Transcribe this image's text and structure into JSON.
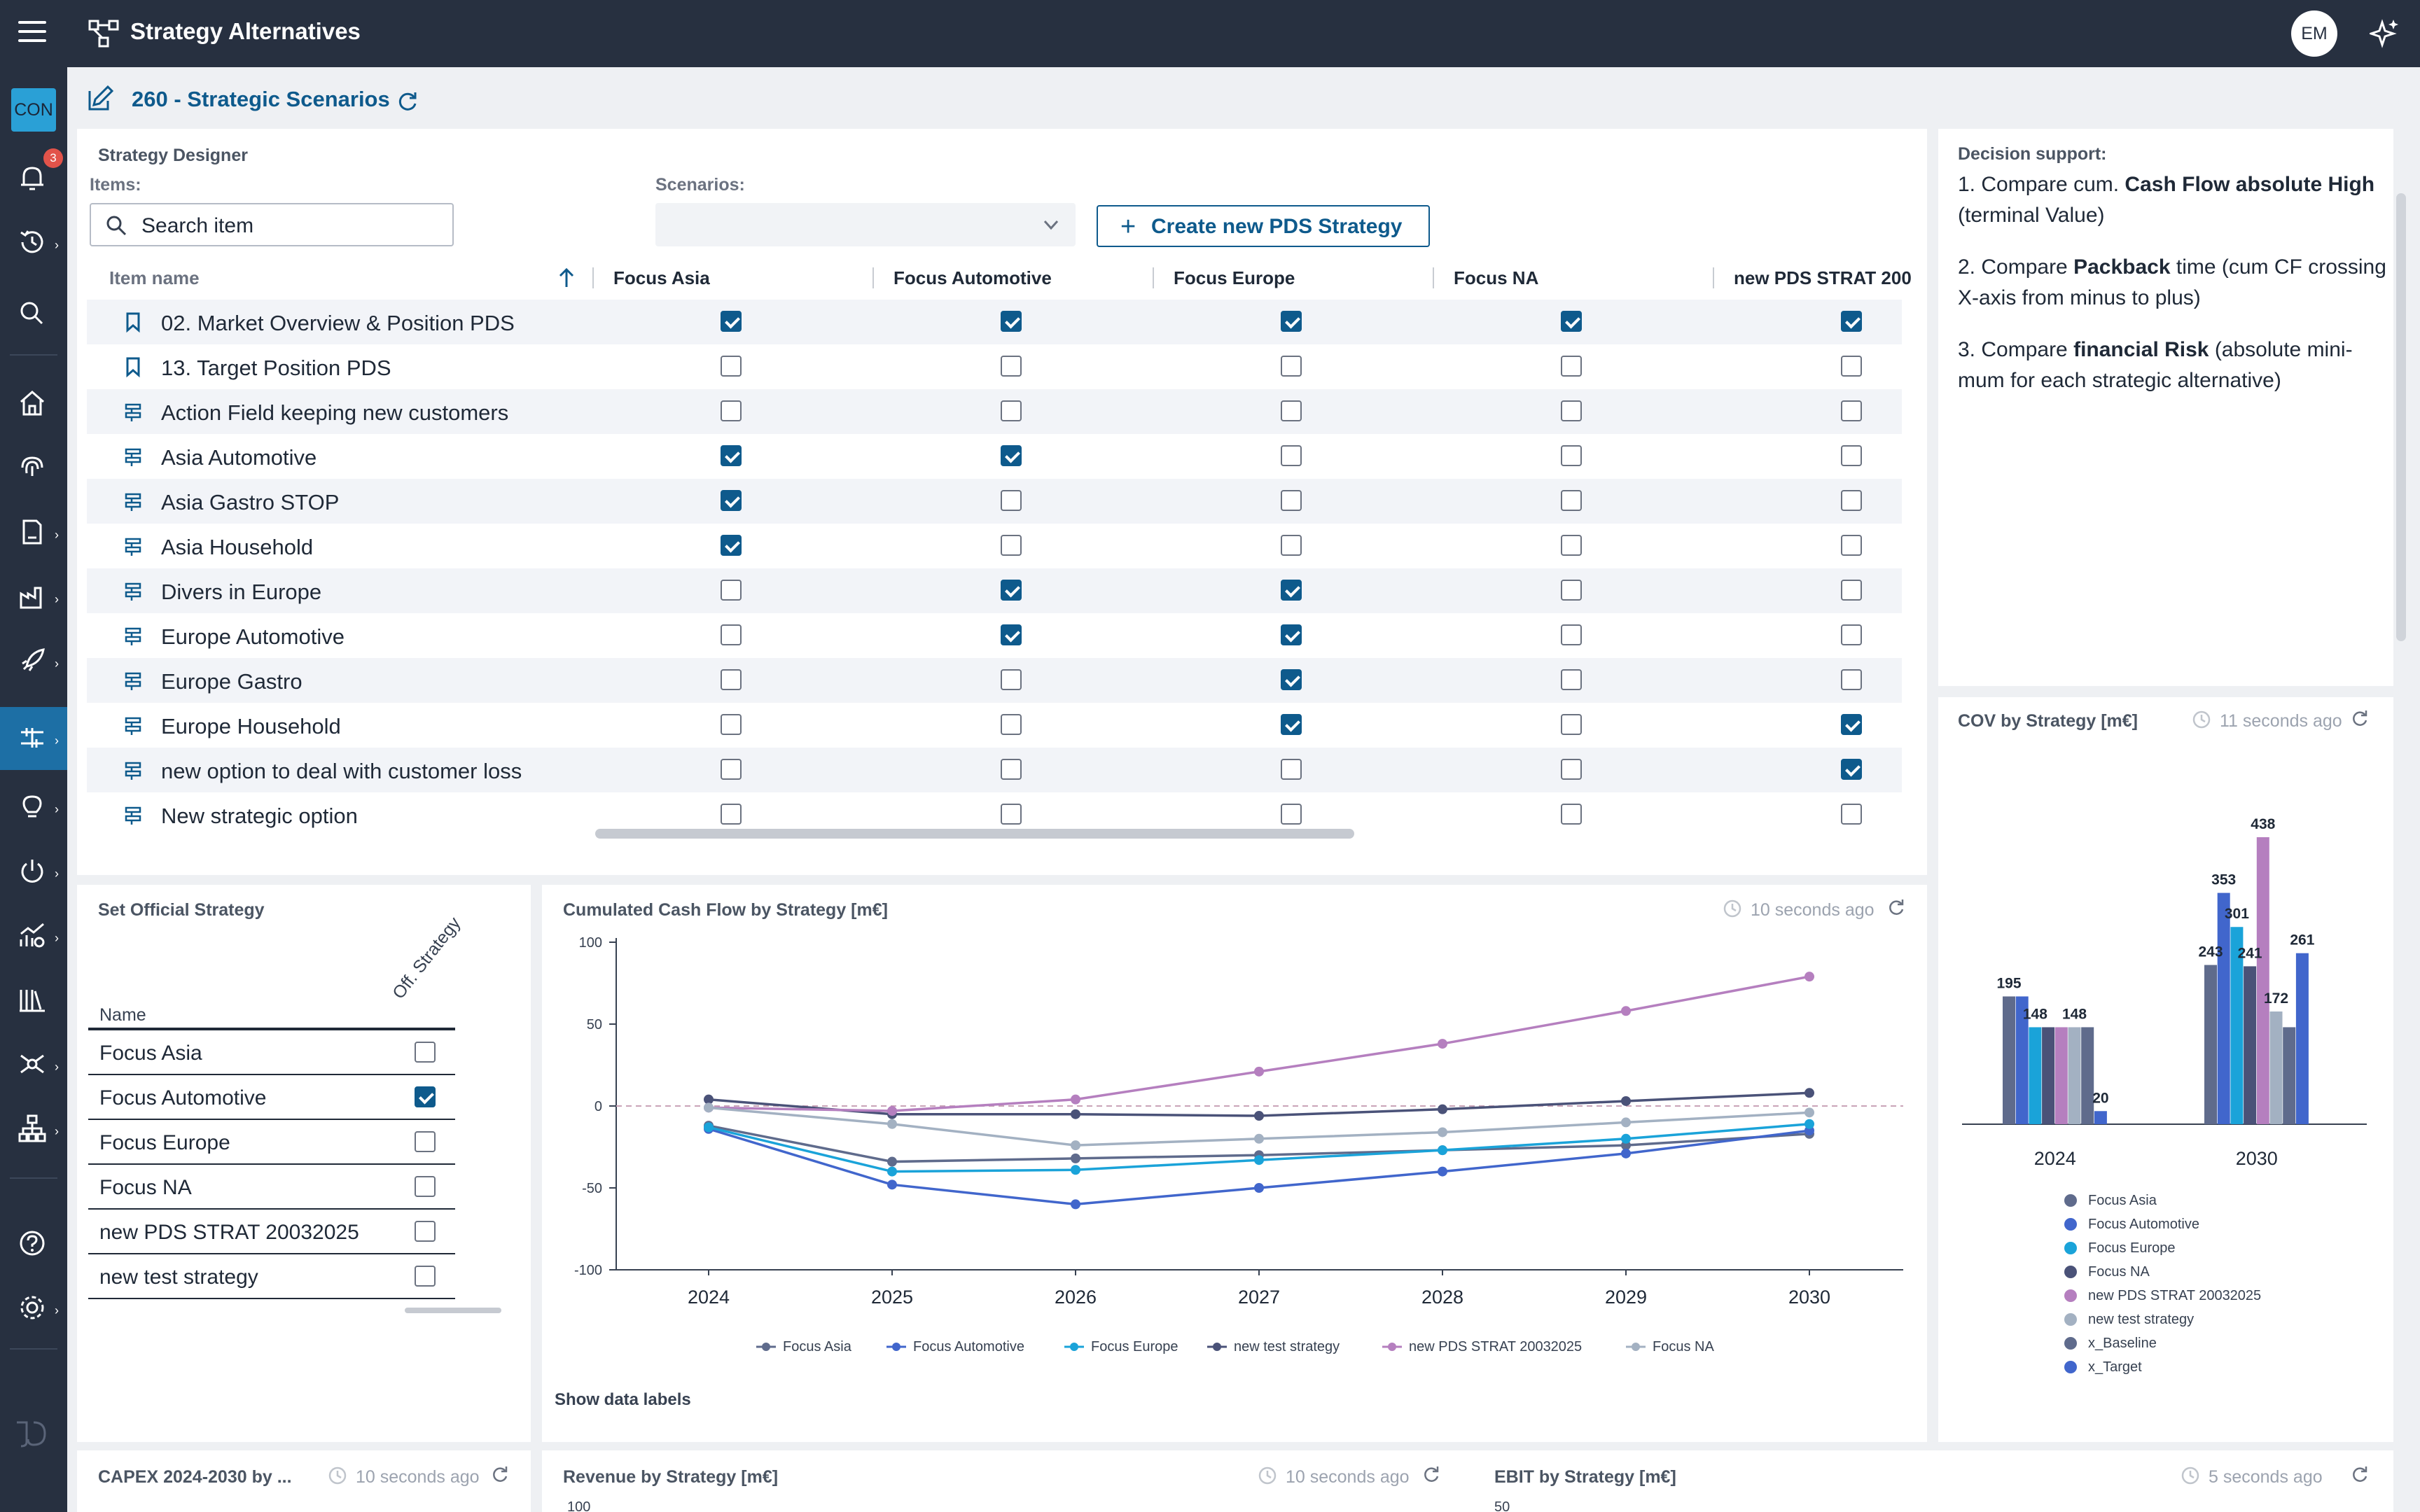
{
  "app": {
    "title": "Strategy Alternatives",
    "avatar": "EM",
    "icons": [
      "menu-icon",
      "app-network-icon",
      "sparkle-icon"
    ]
  },
  "sidebar": {
    "badge_label": "CON",
    "notification_count": "3",
    "items": [
      "notifications",
      "history",
      "search",
      "home",
      "fingerprint",
      "reports",
      "factory",
      "rocket",
      "strategy",
      "ideas",
      "power",
      "analytics",
      "library",
      "network",
      "hierarchy",
      "help",
      "settings"
    ]
  },
  "header": {
    "title": "260 - Strategic Scenarios"
  },
  "designer": {
    "title": "Strategy Designer",
    "items_label": "Items:",
    "scenarios_label": "Scenarios:",
    "search_placeholder": "Search item",
    "scenarios_value": "",
    "create_button": "Create new PDS Strategy",
    "col_item": "Item name",
    "columns": [
      "Focus Asia",
      "Focus Automotive",
      "Focus Europe",
      "Focus NA",
      "new PDS STRAT 200"
    ],
    "rows": [
      {
        "name": "02. Market Overview & Position PDS",
        "icon": "bookmark-icon",
        "checks": [
          true,
          true,
          true,
          true,
          true
        ]
      },
      {
        "name": "13. Target Position PDS",
        "icon": "bookmark-icon",
        "checks": [
          false,
          false,
          false,
          false,
          false
        ]
      },
      {
        "name": "Action Field keeping new customers",
        "icon": "signpost-icon",
        "checks": [
          false,
          false,
          false,
          false,
          false
        ]
      },
      {
        "name": "Asia Automotive",
        "icon": "signpost-icon",
        "checks": [
          true,
          true,
          false,
          false,
          false
        ]
      },
      {
        "name": "Asia Gastro STOP",
        "icon": "signpost-icon",
        "checks": [
          true,
          false,
          false,
          false,
          false
        ]
      },
      {
        "name": "Asia Household",
        "icon": "signpost-icon",
        "checks": [
          true,
          false,
          false,
          false,
          false
        ]
      },
      {
        "name": "Divers in Europe",
        "icon": "signpost-icon",
        "checks": [
          false,
          true,
          true,
          false,
          false
        ]
      },
      {
        "name": "Europe Automotive",
        "icon": "signpost-icon",
        "checks": [
          false,
          true,
          true,
          false,
          false
        ]
      },
      {
        "name": "Europe Gastro",
        "icon": "signpost-icon",
        "checks": [
          false,
          false,
          true,
          false,
          false
        ]
      },
      {
        "name": "Europe Household",
        "icon": "signpost-icon",
        "checks": [
          false,
          false,
          true,
          false,
          true
        ]
      },
      {
        "name": "new option to deal with customer loss",
        "icon": "signpost-icon",
        "checks": [
          false,
          false,
          false,
          false,
          true
        ]
      },
      {
        "name": "New strategic option",
        "icon": "signpost-icon",
        "checks": [
          false,
          false,
          false,
          false,
          false
        ]
      }
    ]
  },
  "decision": {
    "title": "Decision support:",
    "p1_a": "1. Compare cum. ",
    "p1_b": "Cash Flow absolute High",
    "p1_c": " (terminal Value)",
    "p2_a": "2. Compare ",
    "p2_b": "Packback",
    "p2_c": " time (cum CF crossing X-axis from minus to plus)",
    "p3_a": "3. Compare ",
    "p3_b": "financial Risk",
    "p3_c": " (absolute mini-mum for each strategic alternative)"
  },
  "official": {
    "title": "Set Official Strategy",
    "col_name": "Name",
    "col_off": "Off. Strategy",
    "rows": [
      {
        "name": "Focus Asia",
        "checked": false
      },
      {
        "name": "Focus Automotive",
        "checked": true
      },
      {
        "name": "Focus Europe",
        "checked": false
      },
      {
        "name": "Focus NA",
        "checked": false
      },
      {
        "name": "new PDS STRAT 20032025",
        "checked": false
      },
      {
        "name": "new test strategy",
        "checked": false
      }
    ]
  },
  "cumcf": {
    "title": "Cumulated Cash Flow by Strategy [m€]",
    "ago": "10 seconds ago",
    "show_labels": "Show data labels"
  },
  "cov": {
    "title": "COV by Strategy [m€]",
    "ago": "11 seconds ago"
  },
  "bottom": {
    "capex_title": "CAPEX 2024-2030 by ...",
    "capex_ago": "10 seconds ago",
    "revenue_title": "Revenue by Strategy [m€]",
    "revenue_ago": "10 seconds ago",
    "revenue_tick": "100",
    "ebit_title": "EBIT by Strategy [m€]",
    "ebit_ago": "5 seconds ago",
    "ebit_tick": "50"
  },
  "chart_data": [
    {
      "type": "line",
      "title": "Cumulated Cash Flow by Strategy [m€]",
      "x": [
        "2024",
        "2025",
        "2026",
        "2027",
        "2028",
        "2029",
        "2030"
      ],
      "ylim": [
        -100,
        100
      ],
      "yticks": [
        100,
        50,
        0,
        -50,
        -100
      ],
      "legend": "bottom",
      "series": [
        {
          "name": "Focus Asia",
          "color": "#5f6b8c",
          "values": [
            -12,
            -34,
            -32,
            -30,
            -27,
            -24,
            -17
          ]
        },
        {
          "name": "Focus Automotive",
          "color": "#4166cc",
          "values": [
            -14,
            -48,
            -60,
            -50,
            -40,
            -29,
            -15
          ]
        },
        {
          "name": "Focus Europe",
          "color": "#1aa3d9",
          "values": [
            -13,
            -40,
            -39,
            -33,
            -27,
            -20,
            -11
          ]
        },
        {
          "name": "new test strategy",
          "color": "#4a5278",
          "values": [
            4,
            -5,
            -5,
            -6,
            -2,
            3,
            8
          ]
        },
        {
          "name": "new PDS STRAT 20032025",
          "color": "#b57fbf",
          "values": [
            -1,
            -3,
            4,
            21,
            38,
            58,
            79
          ]
        },
        {
          "name": "Focus NA",
          "color": "#a3b1c2",
          "values": [
            -1,
            -11,
            -24,
            -20,
            -16,
            -10,
            -4
          ]
        }
      ]
    },
    {
      "type": "bar",
      "title": "COV by Strategy [m€]",
      "categories": [
        "2024",
        "2030"
      ],
      "legend": "bottom",
      "series": [
        {
          "name": "Focus Asia",
          "color": "#5f6b8c",
          "values": [
            195,
            243
          ]
        },
        {
          "name": "Focus Automotive",
          "color": "#4166cc",
          "values": [
            195,
            353
          ]
        },
        {
          "name": "Focus Europe",
          "color": "#1aa3d9",
          "values": [
            148,
            301
          ]
        },
        {
          "name": "Focus NA",
          "color": "#4a5278",
          "values": [
            148,
            241
          ]
        },
        {
          "name": "new PDS STRAT 20032025",
          "color": "#b57fbf",
          "values": [
            148,
            438
          ]
        },
        {
          "name": "new test strategy",
          "color": "#a3b1c2",
          "values": [
            148,
            172
          ]
        },
        {
          "name": "x_Baseline",
          "color": "#5f6b8c",
          "values": [
            148,
            148
          ]
        },
        {
          "name": "x_Target",
          "color": "#4166cc",
          "values": [
            20,
            261
          ]
        }
      ],
      "labels_2024": [
        [
          0,
          "195"
        ],
        [
          2,
          "148"
        ],
        [
          5,
          "148"
        ],
        [
          7,
          "20"
        ]
      ],
      "labels_2030": [
        [
          0,
          "243"
        ],
        [
          1,
          "353"
        ],
        [
          2,
          "301"
        ],
        [
          3,
          "241"
        ],
        [
          4,
          "438"
        ],
        [
          5,
          "172"
        ],
        [
          7,
          "261"
        ]
      ]
    }
  ]
}
